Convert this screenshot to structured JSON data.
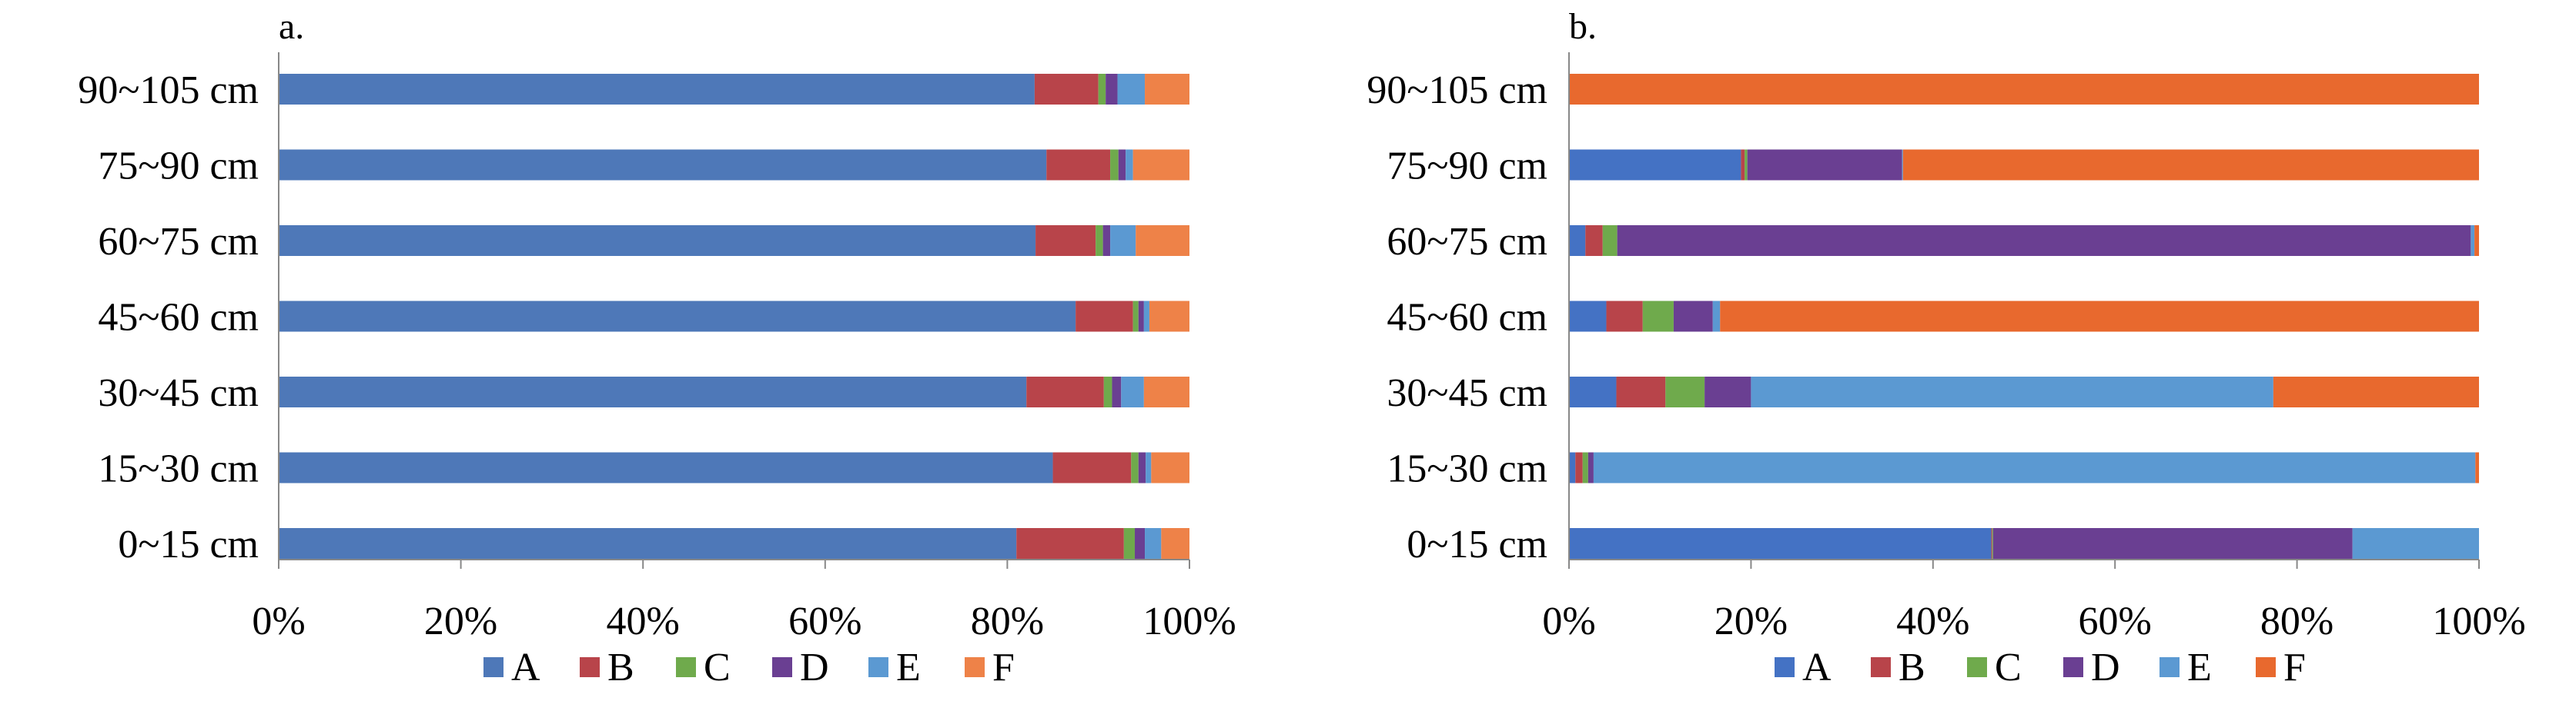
{
  "chart_data": [
    {
      "type": "bar",
      "orientation": "horizontal",
      "stacked": "percent",
      "panel_label": "a.",
      "categories": [
        "90~105 cm",
        "75~90 cm",
        "60~75 cm",
        "45~60 cm",
        "30~45 cm",
        "15~30 cm",
        "0~15 cm"
      ],
      "xlim": [
        0,
        100
      ],
      "xticks": [
        "0%",
        "20%",
        "40%",
        "60%",
        "80%",
        "100%"
      ],
      "grid": false,
      "legend_position": "bottom",
      "series": [
        {
          "name": "A",
          "color": "#4E78B8",
          "values": [
            83.0,
            84.3,
            83.1,
            87.5,
            82.1,
            85.0,
            81.0
          ]
        },
        {
          "name": "B",
          "color": "#B8444A",
          "values": [
            7.0,
            7.0,
            6.6,
            6.3,
            8.5,
            8.6,
            11.8
          ]
        },
        {
          "name": "C",
          "color": "#6FAA4C",
          "values": [
            0.8,
            0.9,
            0.8,
            0.6,
            0.9,
            0.8,
            1.2
          ]
        },
        {
          "name": "D",
          "color": "#6A3F92",
          "values": [
            1.3,
            0.8,
            0.8,
            0.6,
            1.0,
            0.8,
            1.1
          ]
        },
        {
          "name": "E",
          "color": "#5B99D2",
          "values": [
            3.0,
            0.8,
            2.8,
            0.6,
            2.5,
            0.6,
            1.8
          ]
        },
        {
          "name": "F",
          "color": "#EE8248",
          "values": [
            4.9,
            6.2,
            5.9,
            4.4,
            5.0,
            4.2,
            3.1
          ]
        }
      ]
    },
    {
      "type": "bar",
      "orientation": "horizontal",
      "stacked": "percent",
      "panel_label": "b.",
      "categories": [
        "90~105 cm",
        "75~90 cm",
        "60~75 cm",
        "45~60 cm",
        "30~45 cm",
        "15~30 cm",
        "0~15 cm"
      ],
      "xlim": [
        0,
        100
      ],
      "xticks": [
        "0%",
        "20%",
        "40%",
        "60%",
        "80%",
        "100%"
      ],
      "grid": false,
      "legend_position": "bottom",
      "series": [
        {
          "name": "A",
          "color": "#4472C4",
          "values": [
            0.0,
            18.9,
            1.8,
            4.1,
            5.2,
            0.7,
            46.4
          ]
        },
        {
          "name": "B",
          "color": "#B8444A",
          "values": [
            0.0,
            0.4,
            1.9,
            4.0,
            5.4,
            0.8,
            0.1
          ]
        },
        {
          "name": "C",
          "color": "#6FAA4C",
          "values": [
            0.0,
            0.3,
            1.6,
            3.4,
            4.3,
            0.6,
            0.1
          ]
        },
        {
          "name": "D",
          "color": "#6A3F92",
          "values": [
            0.0,
            17.0,
            93.8,
            4.3,
            5.1,
            0.6,
            39.5
          ]
        },
        {
          "name": "E",
          "color": "#5B99D2",
          "values": [
            0.0,
            0.1,
            0.4,
            0.8,
            57.4,
            96.9,
            13.9
          ]
        },
        {
          "name": "F",
          "color": "#E8692E",
          "values": [
            100.0,
            63.3,
            0.5,
            83.4,
            22.6,
            0.4,
            0.0
          ]
        }
      ]
    }
  ]
}
